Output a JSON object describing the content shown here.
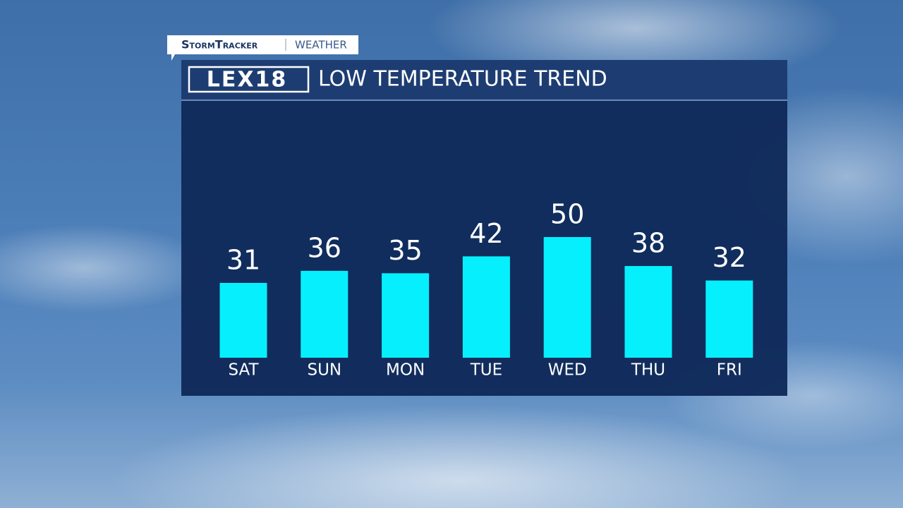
{
  "header": {
    "brand": "StormTracker",
    "section": "WEATHER",
    "logo": "LEX18"
  },
  "chart_data": {
    "type": "bar",
    "title": "LOW TEMPERATURE TREND",
    "categories": [
      "SAT",
      "SUN",
      "MON",
      "TUE",
      "WED",
      "THU",
      "FRI"
    ],
    "values": [
      31,
      36,
      35,
      42,
      50,
      38,
      32
    ],
    "color": "#05f0fc"
  }
}
